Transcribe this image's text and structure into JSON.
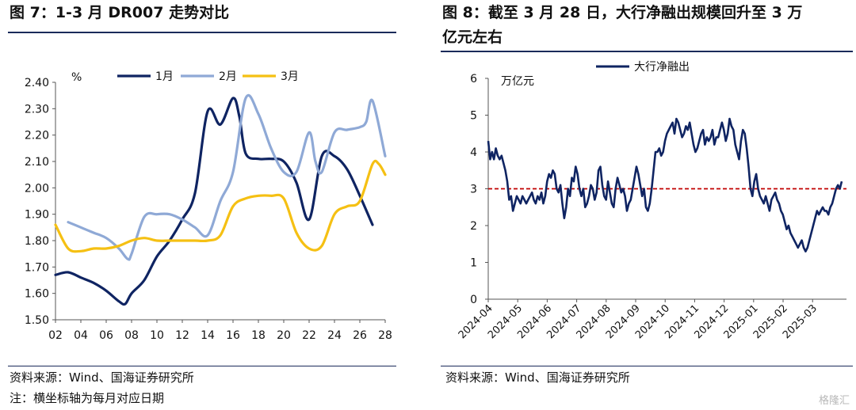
{
  "left": {
    "title": "图 7：1-3 月 DR007 走势对比",
    "source": "资料来源：Wind、国海证券研究所",
    "note": "注：横坐标轴为每月对应日期"
  },
  "right": {
    "title_line1": "图 8：截至 3 月 28 日，大行净融出规模回升至 3 万",
    "title_line2": "亿元左右",
    "source": "资料来源：Wind、国海证券研究所"
  },
  "watermark": "格隆汇",
  "chart_data": [
    {
      "type": "line",
      "ylabel": "%",
      "ylim": [
        1.5,
        2.4
      ],
      "yticks": [
        "1.50",
        "1.60",
        "1.70",
        "1.80",
        "1.90",
        "2.00",
        "2.10",
        "2.20",
        "2.30",
        "2.40"
      ],
      "xticks": [
        "02",
        "04",
        "06",
        "08",
        "10",
        "12",
        "14",
        "16",
        "18",
        "20",
        "22",
        "24",
        "26",
        "28"
      ],
      "xlim": [
        2,
        28
      ],
      "legend_position": "top",
      "grid": false,
      "colors": {
        "1月": "#0f2462",
        "2月": "#8fa9d6",
        "3月": "#f5c013"
      },
      "series": [
        {
          "name": "1月",
          "x": [
            2,
            3,
            4,
            5,
            6,
            7,
            7.5,
            8,
            9,
            10,
            11,
            12,
            13,
            14,
            15,
            16,
            16.5,
            17,
            18,
            19,
            20,
            21,
            22,
            23,
            24,
            25,
            26,
            27
          ],
          "values": [
            1.67,
            1.68,
            1.66,
            1.64,
            1.61,
            1.57,
            1.56,
            1.6,
            1.65,
            1.74,
            1.8,
            1.88,
            1.98,
            2.29,
            2.24,
            2.34,
            2.27,
            2.13,
            2.11,
            2.11,
            2.1,
            2.02,
            1.88,
            2.12,
            2.12,
            2.07,
            1.97,
            1.86
          ]
        },
        {
          "name": "2月",
          "x": [
            3,
            4,
            5,
            6,
            7,
            7.7,
            8,
            9,
            10,
            11,
            12,
            13,
            14,
            15,
            16,
            17,
            18,
            19,
            20,
            21,
            22,
            22.5,
            23,
            24,
            25,
            26,
            26.5,
            27,
            28
          ],
          "values": [
            1.87,
            1.85,
            1.83,
            1.81,
            1.77,
            1.73,
            1.75,
            1.89,
            1.9,
            1.9,
            1.88,
            1.85,
            1.82,
            1.95,
            2.06,
            2.34,
            2.28,
            2.15,
            2.06,
            2.06,
            2.21,
            2.1,
            2.06,
            2.21,
            2.22,
            2.23,
            2.25,
            2.33,
            2.12
          ]
        },
        {
          "name": "3月",
          "x": [
            2,
            3,
            4,
            5,
            6,
            7,
            8,
            9,
            10,
            11,
            12,
            13,
            14,
            15,
            16,
            17,
            18,
            19,
            20,
            21,
            22,
            23,
            24,
            25,
            26,
            27,
            27.5,
            28
          ],
          "values": [
            1.86,
            1.77,
            1.76,
            1.77,
            1.77,
            1.78,
            1.8,
            1.81,
            1.8,
            1.8,
            1.8,
            1.8,
            1.8,
            1.82,
            1.93,
            1.96,
            1.97,
            1.97,
            1.96,
            1.83,
            1.77,
            1.78,
            1.9,
            1.93,
            1.95,
            2.09,
            2.09,
            2.05
          ]
        }
      ]
    },
    {
      "type": "line",
      "ylabel": "万亿元",
      "ylim": [
        0,
        6
      ],
      "yticks": [
        "0",
        "1",
        "2",
        "3",
        "4",
        "5",
        "6"
      ],
      "xticks": [
        "2024-04",
        "2024-05",
        "2024-06",
        "2024-07",
        "2024-08",
        "2024-09",
        "2024-10",
        "2024-11",
        "2024-12",
        "2025-01",
        "2025-02",
        "2025-03"
      ],
      "legend_position": "top-center",
      "reference_line": {
        "y": 3,
        "color": "#c00000",
        "style": "dashed"
      },
      "series": [
        {
          "name": "大行净融出",
          "color": "#0f2462",
          "values": [
            4.3,
            3.8,
            4.0,
            3.8,
            4.1,
            3.9,
            3.8,
            3.9,
            3.7,
            3.5,
            3.2,
            2.7,
            2.8,
            2.4,
            2.6,
            2.8,
            2.7,
            2.6,
            2.8,
            2.7,
            2.6,
            2.7,
            2.8,
            2.9,
            2.7,
            2.6,
            2.8,
            2.7,
            2.9,
            2.6,
            2.8,
            3.2,
            3.4,
            3.3,
            3.5,
            3.4,
            3.0,
            2.9,
            3.1,
            2.6,
            2.2,
            2.5,
            3.0,
            2.8,
            3.3,
            3.2,
            3.6,
            3.4,
            3.0,
            2.8,
            3.0,
            2.5,
            2.6,
            2.8,
            3.1,
            3.0,
            2.7,
            2.9,
            3.5,
            3.6,
            3.1,
            2.8,
            2.7,
            3.2,
            2.9,
            2.6,
            2.5,
            3.0,
            3.3,
            3.1,
            2.9,
            3.0,
            2.8,
            2.4,
            2.6,
            2.7,
            3.0,
            3.3,
            3.6,
            3.4,
            3.1,
            2.8,
            3.0,
            2.5,
            2.4,
            2.6,
            3.0,
            3.5,
            4.0,
            4.0,
            4.1,
            3.9,
            4.0,
            4.3,
            4.5,
            4.6,
            4.7,
            4.8,
            4.5,
            4.9,
            4.8,
            4.6,
            4.4,
            4.5,
            4.7,
            4.6,
            4.8,
            4.5,
            4.2,
            4.0,
            4.1,
            4.3,
            4.5,
            4.6,
            4.2,
            4.4,
            4.3,
            4.4,
            4.6,
            4.2,
            4.4,
            4.4,
            4.6,
            4.8,
            4.6,
            4.3,
            4.5,
            4.9,
            4.7,
            4.6,
            4.2,
            4.0,
            3.8,
            4.3,
            4.6,
            4.5,
            4.1,
            3.6,
            3.0,
            2.8,
            3.2,
            3.4,
            3.0,
            2.8,
            2.7,
            2.6,
            2.8,
            2.6,
            2.4,
            2.7,
            2.8,
            2.9,
            2.7,
            2.6,
            2.4,
            2.3,
            2.1,
            1.9,
            2.0,
            1.8,
            1.7,
            1.6,
            1.5,
            1.4,
            1.5,
            1.6,
            1.4,
            1.3,
            1.4,
            1.6,
            1.8,
            2.0,
            2.2,
            2.4,
            2.3,
            2.4,
            2.5,
            2.4,
            2.4,
            2.3,
            2.5,
            2.6,
            2.8,
            3.0,
            3.1,
            3.0,
            3.2
          ]
        }
      ]
    }
  ]
}
